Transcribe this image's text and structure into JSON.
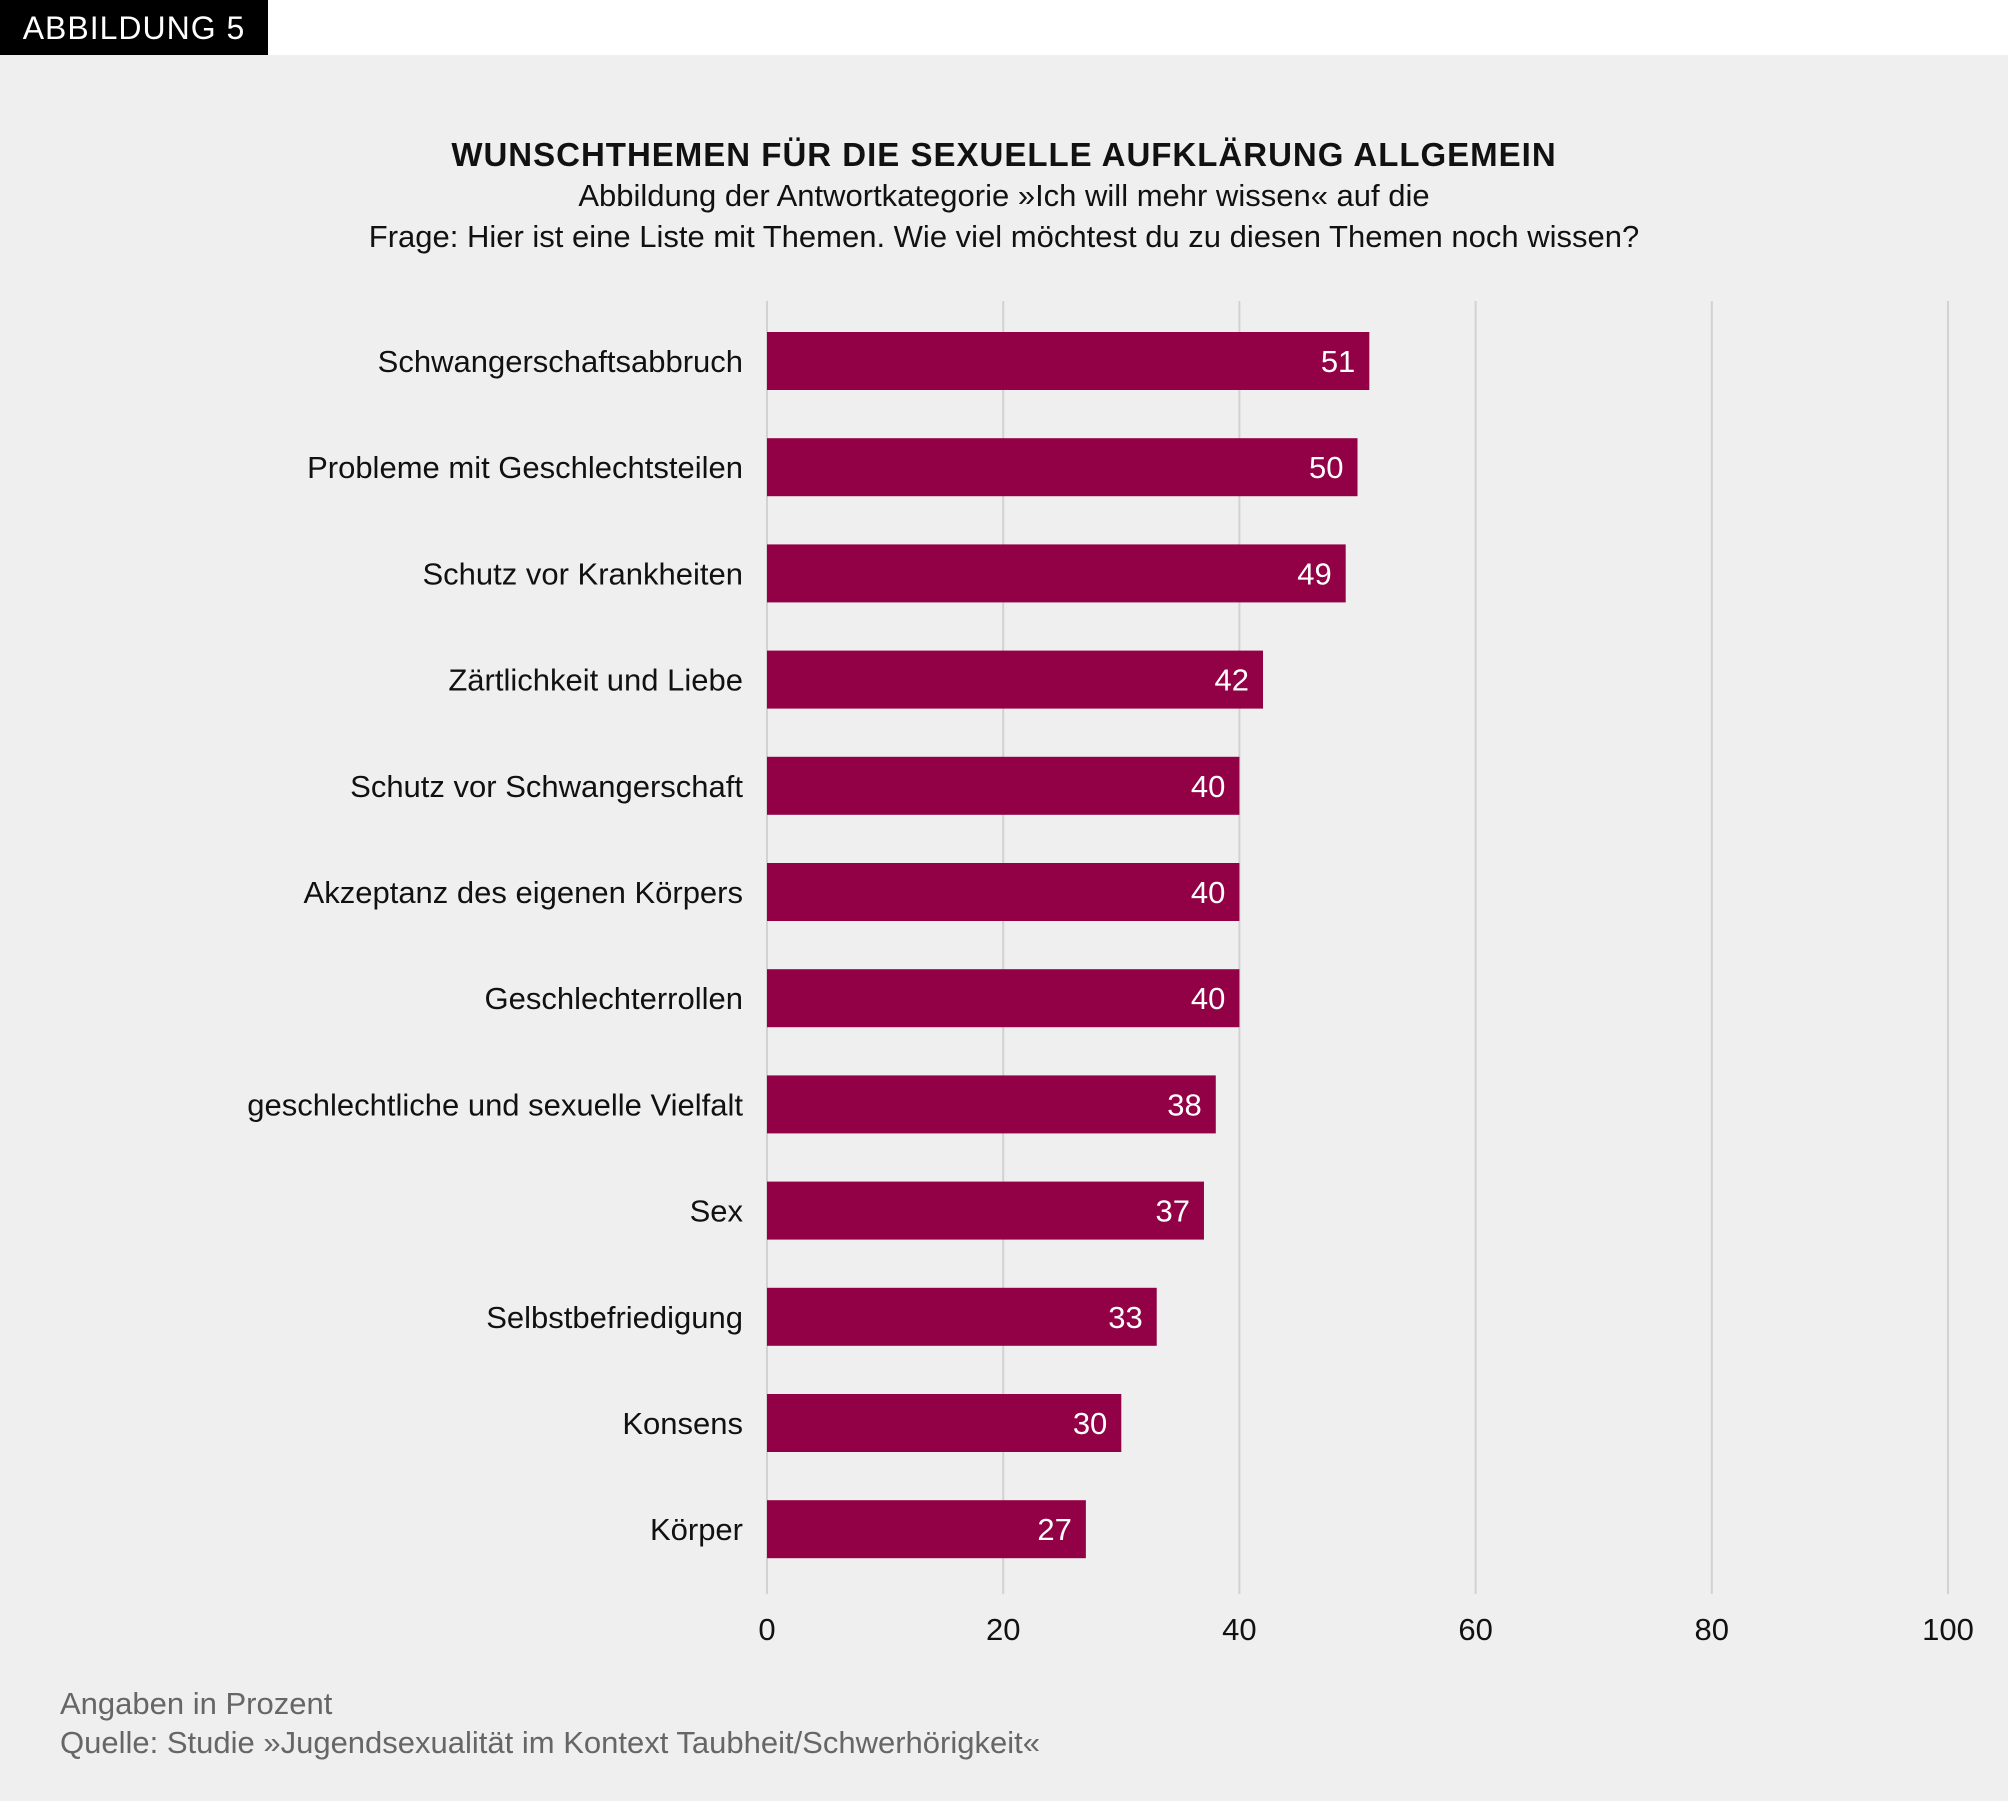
{
  "badge": "ABBILDUNG 5",
  "chart_data": {
    "type": "bar",
    "orientation": "horizontal",
    "title": "WUNSCHTHEMEN FÜR DIE SEXUELLE AUFKLÄRUNG ALLGEMEIN",
    "subtitle_line1": "Abbildung der Antwortkategorie »Ich will mehr wissen« auf die",
    "subtitle_line2": "Frage: Hier ist eine Liste mit Themen. Wie viel möchtest du zu diesen Themen noch wissen?",
    "categories": [
      "Schwangerschaftsabbruch",
      "Probleme mit Geschlechtsteilen",
      "Schutz vor Krankheiten",
      "Zärtlichkeit und Liebe",
      "Schutz vor Schwangerschaft",
      "Akzeptanz des eigenen Körpers",
      "Geschlechterrollen",
      "geschlechtliche und sexuelle Vielfalt",
      "Sex",
      "Selbstbefriedigung",
      "Konsens",
      "Körper"
    ],
    "values": [
      51,
      50,
      49,
      42,
      40,
      40,
      40,
      38,
      37,
      33,
      30,
      27
    ],
    "xlim": [
      0,
      100
    ],
    "xticks": [
      "0",
      "20",
      "40",
      "60",
      "80",
      "100"
    ],
    "grid": true,
    "bar_color": "#920045",
    "value_label_color": "#ffffff"
  },
  "footer": {
    "unit_note": "Angaben in Prozent",
    "source": "Quelle: Studie »Jugendsexualität im Kontext Taubheit/Schwerhörigkeit«"
  }
}
